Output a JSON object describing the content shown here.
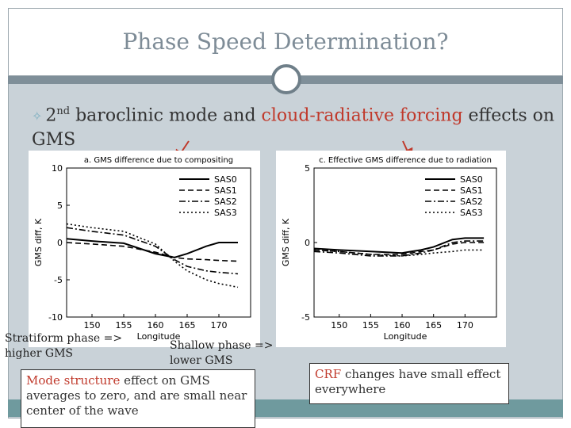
{
  "slide": {
    "title": "Phase Speed Determination?",
    "bullet": {
      "part1": "2",
      "sup": "nd",
      "part2": " baroclinic mode and ",
      "red": "cloud-radiative forcing",
      "part3": " effects on GMS"
    },
    "annotations": {
      "stratiform": [
        "Stratiform phase =>",
        "higher GMS"
      ],
      "shallow": [
        "Shallow phase =>",
        "lower GMS"
      ]
    },
    "box_left": {
      "red": "Mode structure",
      "rest": " effect on GMS averages to zero, and are small near center of the wave"
    },
    "box_right": {
      "red": "CRF",
      "rest": " changes have small effect everywhere"
    },
    "colors": {
      "accent_red": "#c0392b",
      "title": "#7e8c97"
    }
  },
  "chart_data": [
    {
      "type": "line",
      "title": "a. GMS difference due to compositing",
      "xlabel": "Longitude",
      "ylabel": "GMS diff, K",
      "xlim": [
        146,
        175
      ],
      "ylim": [
        -10,
        10
      ],
      "xticks": [
        150,
        155,
        160,
        165,
        170
      ],
      "yticks": [
        10,
        5,
        0,
        -5,
        -10
      ],
      "x": [
        146,
        150,
        155,
        160,
        163,
        165,
        168,
        170,
        173
      ],
      "series": [
        {
          "name": "SAS0",
          "values": [
            0.5,
            0.2,
            -0.1,
            -1.5,
            -2.0,
            -1.5,
            -0.5,
            0.0,
            0.0
          ]
        },
        {
          "name": "SAS1",
          "values": [
            0.0,
            -0.2,
            -0.5,
            -1.3,
            -2.0,
            -2.2,
            -2.3,
            -2.4,
            -2.5
          ]
        },
        {
          "name": "SAS2",
          "values": [
            2.0,
            1.5,
            1.0,
            -0.5,
            -2.3,
            -3.2,
            -3.8,
            -4.0,
            -4.2
          ]
        },
        {
          "name": "SAS3",
          "values": [
            2.5,
            2.0,
            1.5,
            -0.2,
            -2.5,
            -3.8,
            -5.0,
            -5.5,
            -6.0
          ]
        }
      ]
    },
    {
      "type": "line",
      "title": "c. Effective GMS difference due to radiation",
      "xlabel": "Longitude",
      "ylabel": "GMS diff, K",
      "xlim": [
        146,
        175
      ],
      "ylim": [
        -5,
        5
      ],
      "xticks": [
        150,
        155,
        160,
        165,
        170
      ],
      "yticks": [
        5,
        0,
        -5
      ],
      "x": [
        146,
        150,
        155,
        160,
        163,
        165,
        168,
        170,
        173
      ],
      "series": [
        {
          "name": "SAS0",
          "values": [
            -0.4,
            -0.5,
            -0.6,
            -0.7,
            -0.5,
            -0.3,
            0.2,
            0.3,
            0.3
          ]
        },
        {
          "name": "SAS1",
          "values": [
            -0.5,
            -0.6,
            -0.8,
            -0.8,
            -0.6,
            -0.5,
            -0.1,
            0.0,
            0.0
          ]
        },
        {
          "name": "SAS2",
          "values": [
            -0.6,
            -0.7,
            -0.9,
            -0.9,
            -0.7,
            -0.5,
            0.0,
            0.1,
            0.1
          ]
        },
        {
          "name": "SAS3",
          "values": [
            -0.5,
            -0.6,
            -0.8,
            -0.9,
            -0.8,
            -0.7,
            -0.6,
            -0.5,
            -0.5
          ]
        }
      ]
    }
  ]
}
